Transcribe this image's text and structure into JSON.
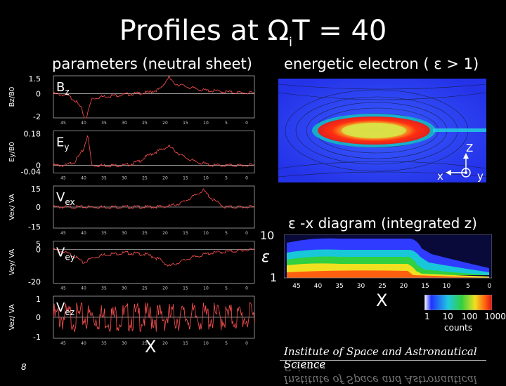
{
  "slide": {
    "title_main": "Profiles at ΩiT = 40",
    "title_prefix": "Profiles at Ω",
    "title_sub": "i",
    "title_suffix": "T = 40",
    "page_number": "8"
  },
  "left": {
    "header": "parameters (neutral sheet)",
    "x_axis_label": "X",
    "x_ticks": [
      "45",
      "40",
      "35",
      "30",
      "25",
      "20",
      "15",
      "10",
      "5",
      "0"
    ],
    "panels": [
      {
        "ylabel": "Bz/B0",
        "inset": "Bz",
        "yticks": [
          "1.5",
          "0",
          "-2"
        ]
      },
      {
        "ylabel": "Ey/B0",
        "inset": "Ey",
        "yticks": [
          "0.18",
          "0",
          "-0.04"
        ]
      },
      {
        "ylabel": "Vex/ VA",
        "inset": "Vex",
        "yticks": [
          "15",
          "0",
          "-15"
        ]
      },
      {
        "ylabel": "Vey/ VA",
        "inset": "Vey",
        "yticks": [
          "5",
          "0",
          "-20"
        ]
      },
      {
        "ylabel": "Vez/ VA",
        "inset": "Vez",
        "yticks": [
          "1",
          "0",
          "-1"
        ]
      }
    ]
  },
  "right": {
    "header": "energetic electron ( ε > 1)",
    "axes": {
      "z": "Z",
      "x": "x",
      "y": "y"
    },
    "diagram_title": "ε -x diagram (integrated z)",
    "eps_label": "ε",
    "eps_ticks": [
      "10",
      "1"
    ],
    "x_ticks": [
      "45",
      "40",
      "35",
      "30",
      "25",
      "20",
      "15",
      "10",
      "5",
      "0"
    ],
    "x_axis_label": "X",
    "colorbar_ticks": [
      "1",
      "10",
      "100",
      "1000"
    ],
    "colorbar_label": "counts"
  },
  "footer": {
    "institute": "Institute of Space and Astronautical Science"
  },
  "chart_data": [
    {
      "type": "line",
      "title": "Bz",
      "xlabel": "X",
      "ylabel": "Bz/B0",
      "xlim": [
        47,
        0
      ],
      "ylim": [
        -2,
        1.5
      ],
      "x": [
        47,
        44,
        42,
        40.5,
        39.5,
        38,
        35,
        30,
        25,
        22,
        20,
        19,
        16,
        12,
        8,
        4,
        0
      ],
      "y": [
        0,
        -0.1,
        -0.5,
        -1.2,
        -2.2,
        -0.4,
        -0.2,
        -0.05,
        0.1,
        0.4,
        1.4,
        0.9,
        0.6,
        0.3,
        0.2,
        0.1,
        0.05
      ]
    },
    {
      "type": "line",
      "title": "Ey",
      "xlabel": "X",
      "ylabel": "Ey/B0",
      "xlim": [
        47,
        0
      ],
      "ylim": [
        -0.04,
        0.18
      ],
      "x": [
        47,
        44,
        42,
        40,
        39,
        38,
        35,
        30,
        27,
        25,
        22,
        20,
        17,
        14,
        10,
        5,
        0
      ],
      "y": [
        0,
        0,
        0.02,
        0.08,
        0.16,
        0.0,
        0,
        0,
        0.02,
        0.05,
        0.08,
        0.1,
        0.05,
        0.02,
        0,
        0,
        0
      ]
    },
    {
      "type": "line",
      "title": "Vex",
      "xlabel": "X",
      "ylabel": "Vex/ VA",
      "xlim": [
        47,
        0
      ],
      "ylim": [
        -15,
        15
      ],
      "x": [
        47,
        40,
        35,
        30,
        25,
        20,
        17,
        14,
        12,
        10,
        7,
        5,
        0
      ],
      "y": [
        0,
        0,
        0,
        0,
        0,
        0.5,
        3,
        8,
        12,
        6,
        0,
        0,
        0
      ]
    },
    {
      "type": "line",
      "title": "Vey",
      "xlabel": "X",
      "ylabel": "Vey/ VA",
      "xlim": [
        47,
        0
      ],
      "ylim": [
        -20,
        5
      ],
      "x": [
        47,
        44,
        42,
        40,
        38,
        35,
        30,
        25,
        22,
        20,
        18,
        15,
        10,
        5,
        0
      ],
      "y": [
        0,
        -2,
        -4,
        -8,
        -5,
        -3,
        -2,
        -3,
        -6,
        -10,
        -8,
        -5,
        -2,
        -1,
        0
      ]
    },
    {
      "type": "line",
      "title": "Vez",
      "xlabel": "X",
      "ylabel": "Vez/ VA",
      "xlim": [
        47,
        0
      ],
      "ylim": [
        -1,
        1
      ],
      "x": [
        47,
        40,
        35,
        30,
        25,
        20,
        15,
        10,
        5,
        0
      ],
      "y": [
        0,
        0,
        0,
        0,
        0,
        0,
        0,
        0,
        0,
        0
      ]
    }
  ]
}
